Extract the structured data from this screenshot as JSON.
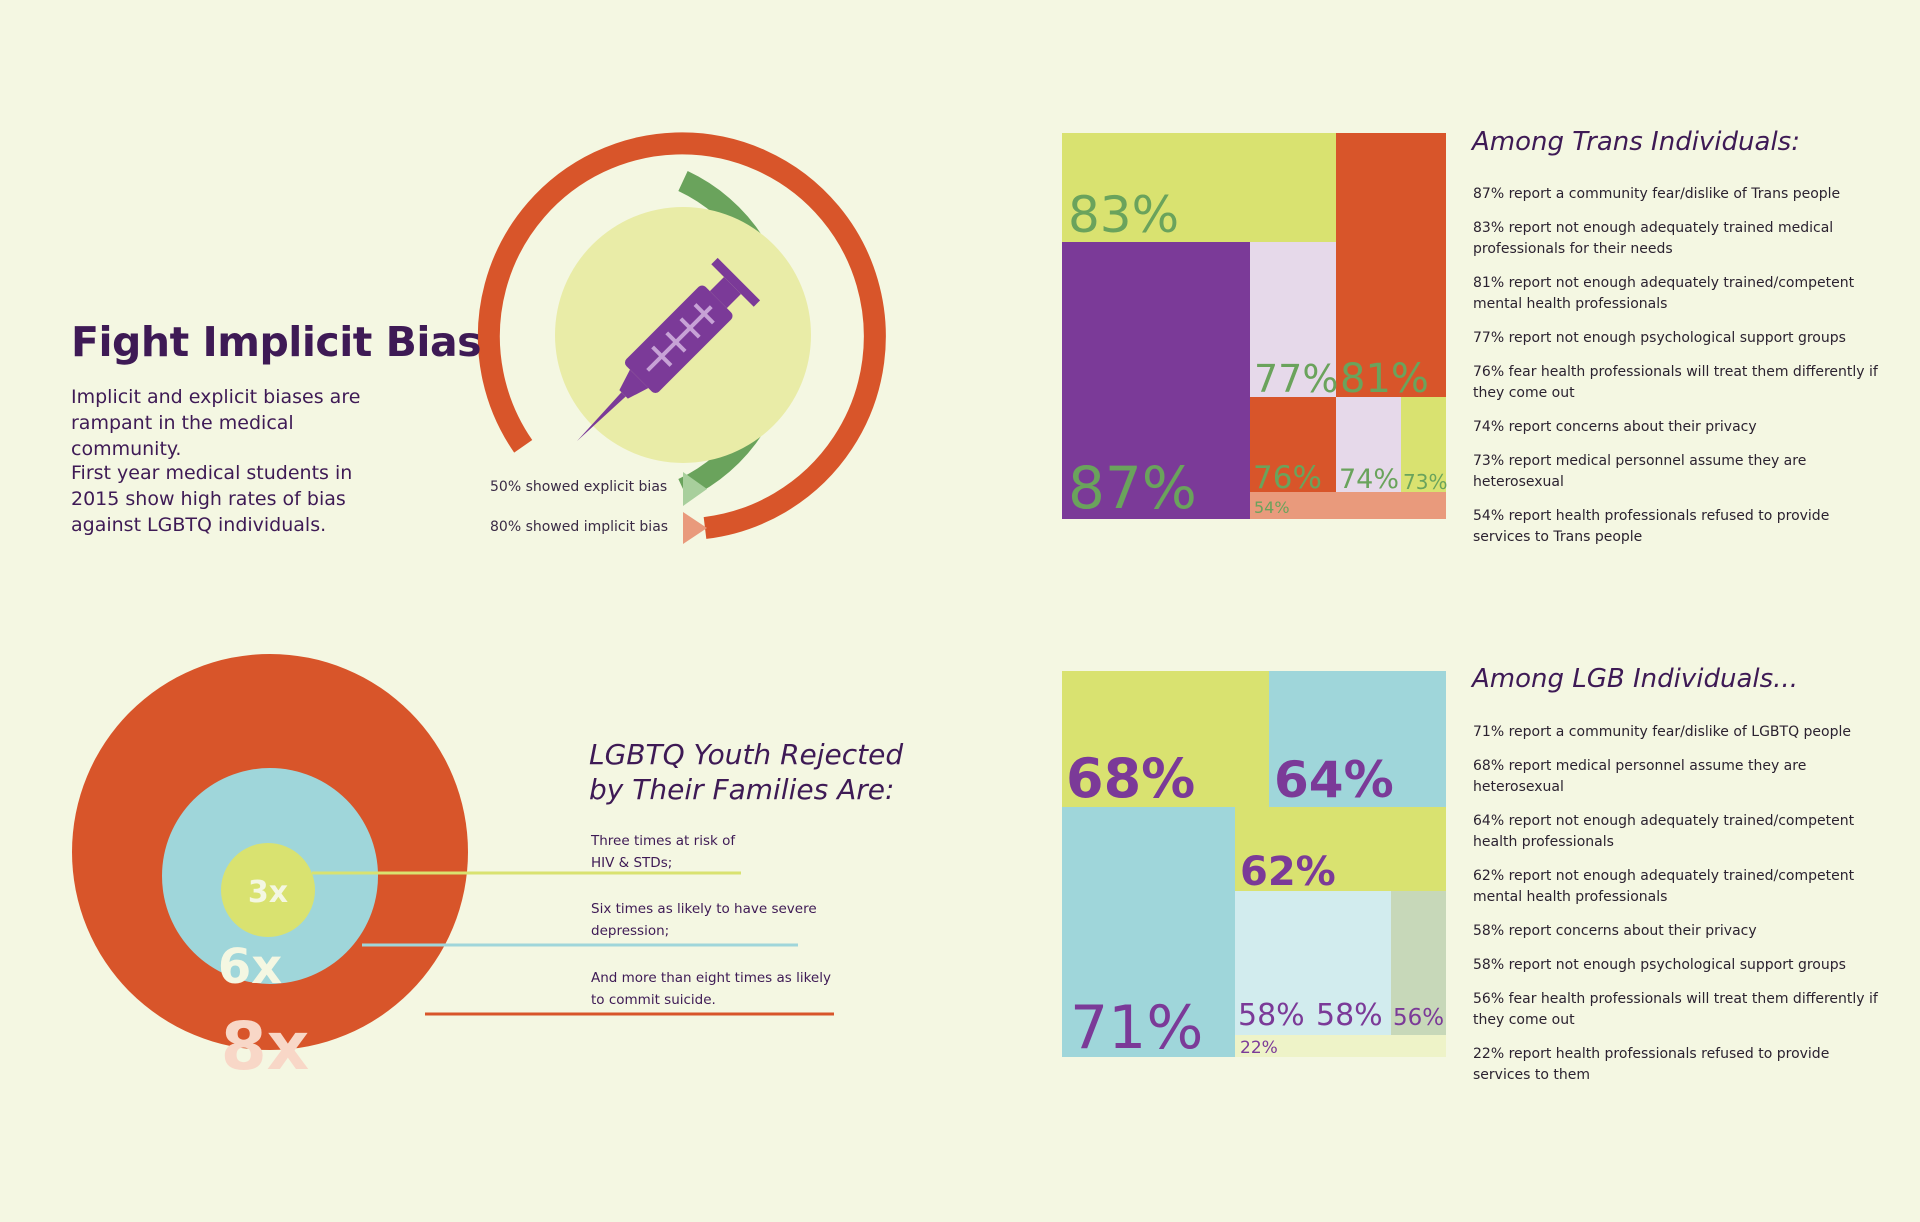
{
  "bias": {
    "title": "Fight Implicit Bias",
    "paragraph1": "Implicit and explicit biases are rampant in the medical community.",
    "paragraph2": "First year medical students in 2015 show high rates of bias against LGBTQ individuals.",
    "explicit_label": "50% showed explicit bias",
    "implicit_label": "80% showed implicit bias",
    "icon": "syringe-icon",
    "explicit_pct": 50,
    "implicit_pct": 80
  },
  "trans": {
    "heading": "Among Trans Individuals:",
    "items": [
      "87% report a community fear/dislike of Trans people",
      "83% report not enough adequately trained medical professionals for their needs",
      "81% report not enough adequately trained/competent mental health professionals",
      "77% report not enough psychological support groups",
      "76% fear health professionals will treat them differently if they come out",
      "74% report concerns about their privacy",
      "73% report medical personnel assume they are heterosexual",
      "54% report health professionals refused to provide services to Trans people"
    ]
  },
  "lgb": {
    "heading": "Among LGB Individuals...",
    "items": [
      "71% report a community fear/dislike of LGBTQ people",
      "68% report medical personnel assume they are heterosexual",
      "64% report not enough adequately trained/competent health professionals",
      "62% report not enough adequately trained/competent mental health professionals",
      "58% report concerns about their privacy",
      "58% report not enough psychological support groups",
      "56% fear health professionals will treat them differently if they come out",
      "22% report health professionals refused to provide services to them"
    ]
  },
  "youth": {
    "heading_line1": "LGBTQ Youth Rejected",
    "heading_line2": "by Their Families Are:",
    "labels": [
      {
        "line1": "Three times at risk of",
        "line2": "HIV & STDs;"
      },
      {
        "line1": "Six times as likely to have severe",
        "line2": "depression;"
      },
      {
        "line1": "And more than eight times as likely",
        "line2": "to commit suicide."
      }
    ]
  },
  "chart_data": [
    {
      "type": "treemap",
      "title": "Among Trans Individuals:",
      "tiles": [
        {
          "label": "87%",
          "value": 87
        },
        {
          "label": "83%",
          "value": 83
        },
        {
          "label": "81%",
          "value": 81
        },
        {
          "label": "77%",
          "value": 77
        },
        {
          "label": "76%",
          "value": 76
        },
        {
          "label": "74%",
          "value": 74
        },
        {
          "label": "73%",
          "value": 73
        },
        {
          "label": "54%",
          "value": 54
        }
      ]
    },
    {
      "type": "treemap",
      "title": "Among LGB Individuals...",
      "tiles": [
        {
          "label": "71%",
          "value": 71
        },
        {
          "label": "68%",
          "value": 68
        },
        {
          "label": "64%",
          "value": 64
        },
        {
          "label": "62%",
          "value": 62
        },
        {
          "label": "58%",
          "value": 58
        },
        {
          "label": "58%",
          "value": 58
        },
        {
          "label": "56%",
          "value": 56
        },
        {
          "label": "22%",
          "value": 22
        }
      ]
    },
    {
      "type": "concentric-circles",
      "title": "LGBTQ Youth Rejected by Their Families Are:",
      "rings": [
        {
          "label": "3x",
          "value": 3
        },
        {
          "label": "6x",
          "value": 6
        },
        {
          "label": "8x",
          "value": 8
        }
      ]
    }
  ],
  "colors": {
    "background": "#f4f7e2",
    "orange": "#d8552a",
    "green": "#6aa35c",
    "purple": "#7b3a98",
    "lime": "#d9e270",
    "light_lavender": "#e6d9ea",
    "salmon": "#e99a7c",
    "light_blue": "#9fd6da",
    "pale_blue": "#d2ecee",
    "sage": "#c7d8b9",
    "cream": "#eef3c8",
    "dark_purple_text": "#3e1a55"
  }
}
